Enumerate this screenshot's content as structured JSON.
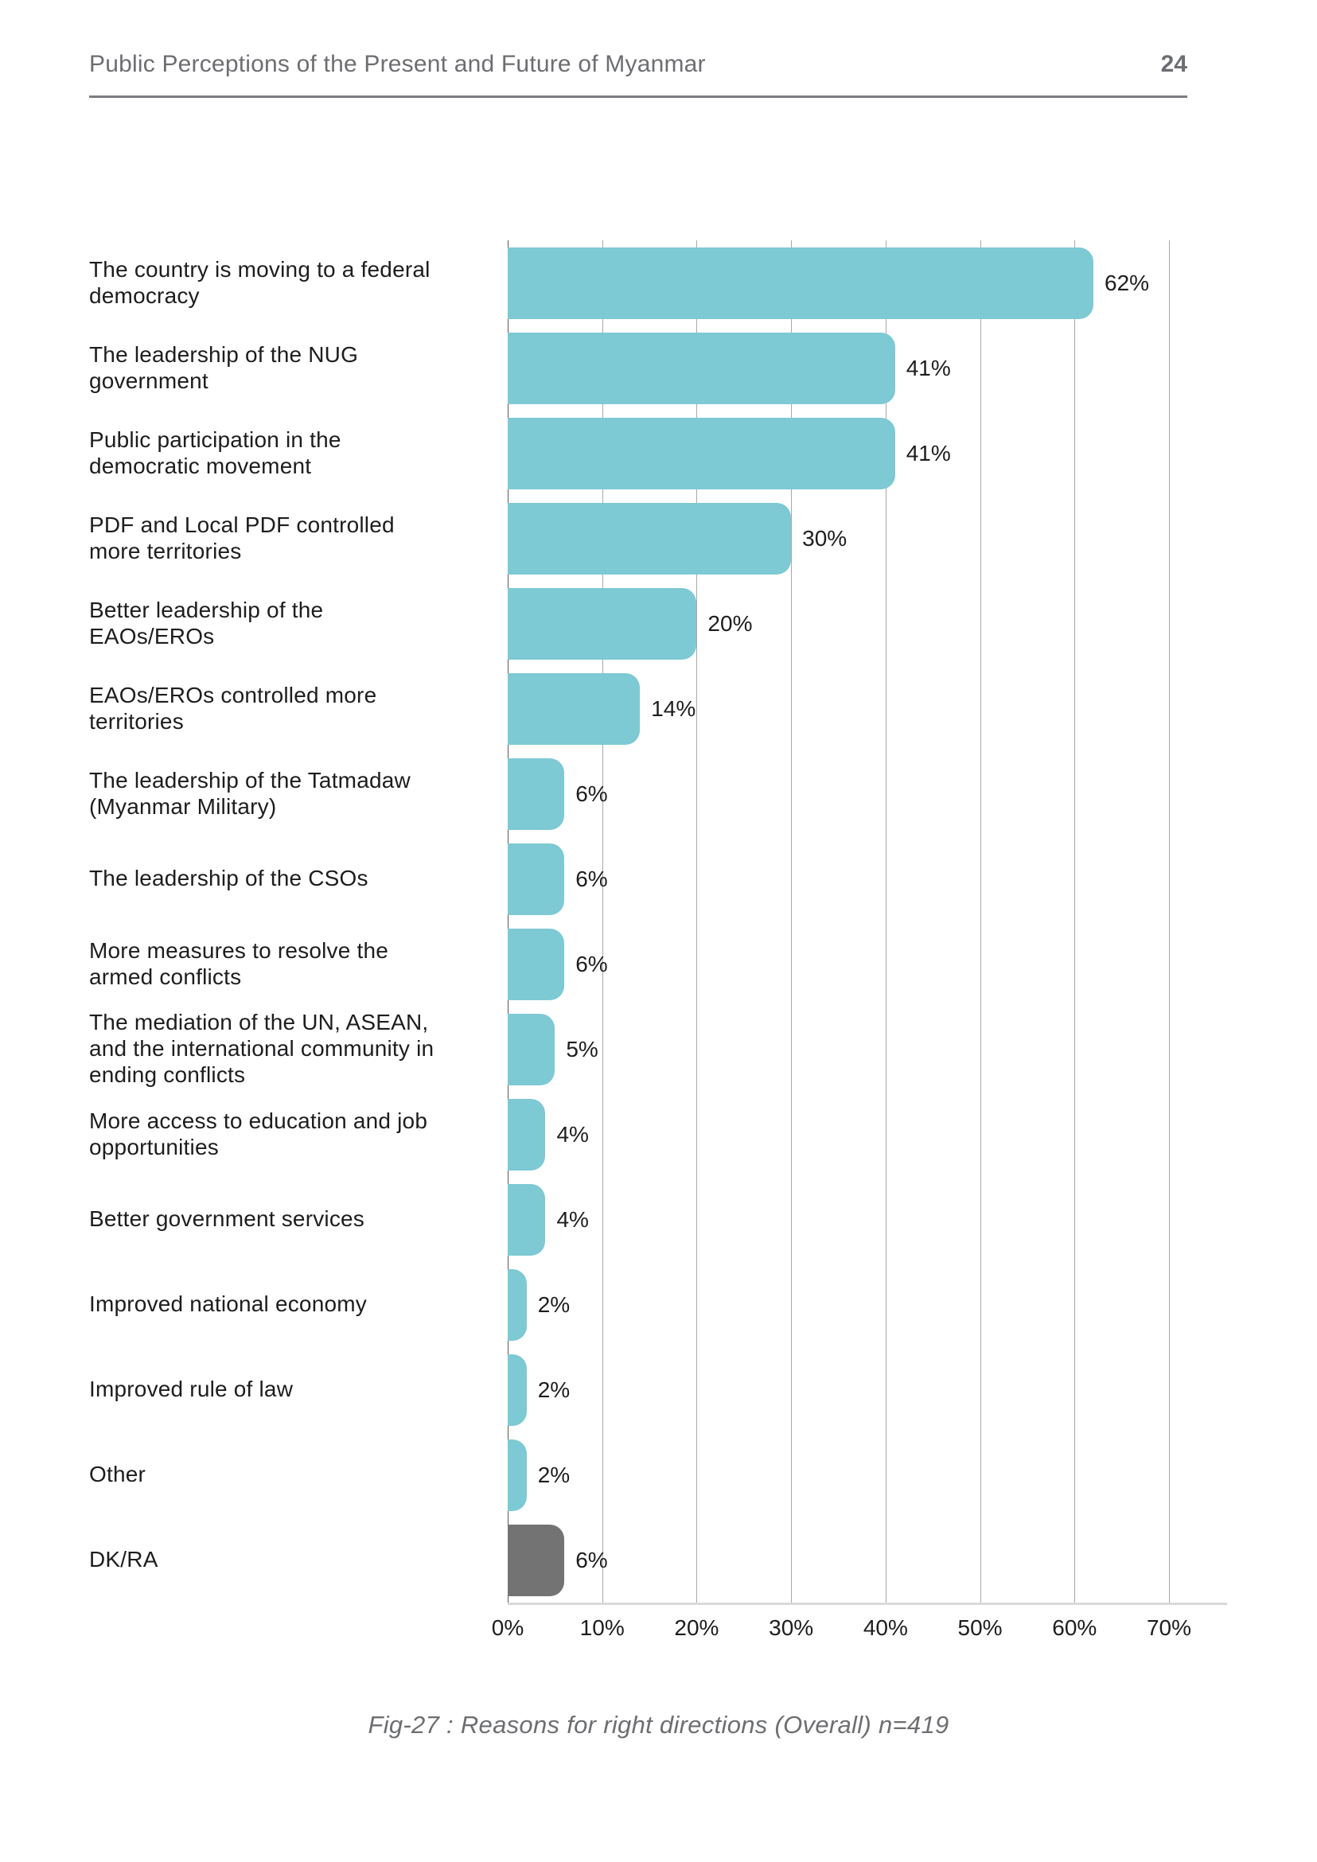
{
  "header": {
    "title": "Public Perceptions of the Present and Future of Myanmar",
    "page_number": "24"
  },
  "chart_data": {
    "type": "bar",
    "orientation": "horizontal",
    "title": "",
    "xlabel": "",
    "ylabel": "",
    "xlim": [
      0,
      70
    ],
    "x_ticks": [
      "0%",
      "10%",
      "20%",
      "30%",
      "40%",
      "50%",
      "60%",
      "70%"
    ],
    "grid": true,
    "legend_position": "none",
    "categories": [
      "The country is moving to a federal democracy",
      "The leadership of the NUG government",
      "Public participation in the democratic movement",
      "PDF and Local PDF controlled more territories",
      "Better leadership of the EAOs/EROs",
      "EAOs/EROs controlled more territories",
      "The leadership of the Tatmadaw (Myanmar Military)",
      "The leadership of the CSOs",
      "More measures to resolve the armed conflicts",
      "The mediation of the UN, ASEAN, and the international community in ending conflicts",
      "More access to education and job opportunities",
      "Better government services",
      "Improved national economy",
      "Improved rule of law",
      "Other",
      "DK/RA"
    ],
    "values": [
      62,
      41,
      41,
      30,
      20,
      14,
      6,
      6,
      6,
      5,
      4,
      4,
      2,
      2,
      2,
      6
    ],
    "value_labels": [
      "62%",
      "41%",
      "41%",
      "30%",
      "20%",
      "14%",
      "6%",
      "6%",
      "6%",
      "5%",
      "4%",
      "4%",
      "2%",
      "2%",
      "2%",
      "6%"
    ],
    "bar_colors": [
      "#7dc9d4",
      "#7dc9d4",
      "#7dc9d4",
      "#7dc9d4",
      "#7dc9d4",
      "#7dc9d4",
      "#7dc9d4",
      "#7dc9d4",
      "#7dc9d4",
      "#7dc9d4",
      "#7dc9d4",
      "#7dc9d4",
      "#7dc9d4",
      "#7dc9d4",
      "#7dc9d4",
      "#737373"
    ]
  },
  "caption": "Fig-27 : Reasons for right directions (Overall) n=419",
  "colors": {
    "bar_teal": "#7dc9d4",
    "bar_gray": "#737373",
    "grid_line": "#a8a8a8",
    "zero_line": "#595959",
    "axis_line": "#d9d9d9",
    "header_text": "#6d6e71",
    "header_rule": "#7c7d80",
    "label_text": "#1d1d1f",
    "caption_text": "#6d6e71"
  }
}
